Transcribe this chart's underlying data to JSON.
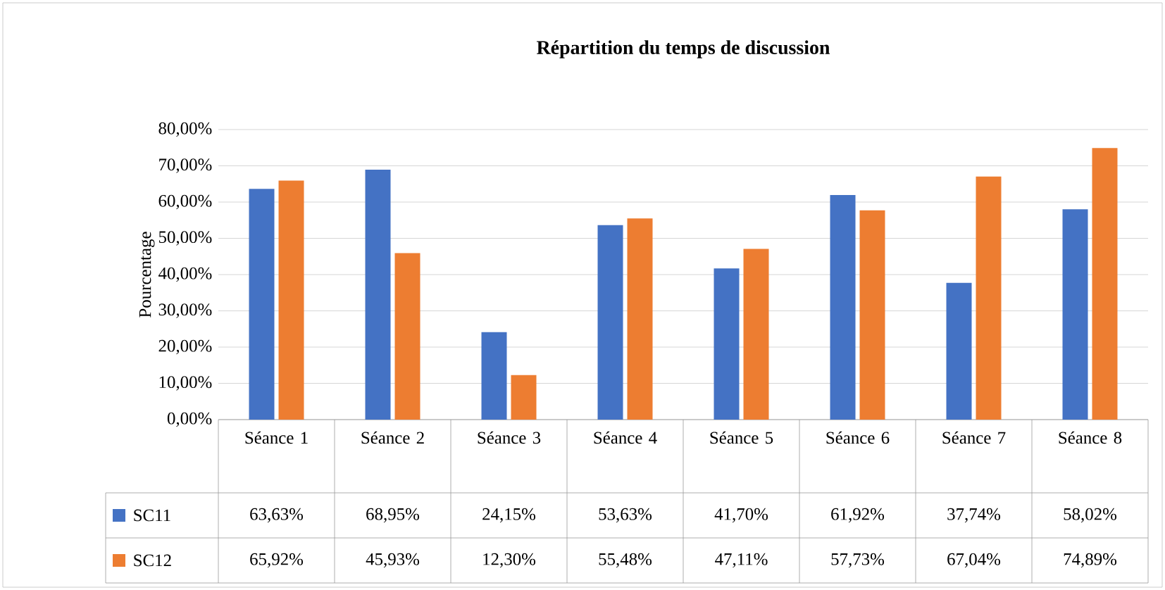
{
  "chart_data": {
    "type": "bar",
    "title": "Répartition du temps de discussion",
    "ylabel": "Pourcentage",
    "categories": [
      "Séance 1",
      "Séance 2",
      "Séance 3",
      "Séance 4",
      "Séance 5",
      "Séance 6",
      "Séance 7",
      "Séance 8"
    ],
    "series": [
      {
        "name": "SC11",
        "color": "#4472c4",
        "values": [
          63.63,
          68.95,
          24.15,
          53.63,
          41.7,
          61.92,
          37.74,
          58.02
        ],
        "value_labels": [
          "63,63%",
          "68,95%",
          "24,15%",
          "53,63%",
          "41,70%",
          "61,92%",
          "37,74%",
          "58,02%"
        ]
      },
      {
        "name": "SC12",
        "color": "#ed7d31",
        "values": [
          65.92,
          45.93,
          12.3,
          55.48,
          47.11,
          57.73,
          67.04,
          74.89
        ],
        "value_labels": [
          "65,92%",
          "45,93%",
          "12,30%",
          "55,48%",
          "47,11%",
          "57,73%",
          "67,04%",
          "74,89%"
        ]
      }
    ],
    "ylim": [
      0,
      80
    ],
    "yticks": [
      {
        "value": 0,
        "label": "0,00%"
      },
      {
        "value": 10,
        "label": "10,00%"
      },
      {
        "value": 20,
        "label": "20,00%"
      },
      {
        "value": 30,
        "label": "30,00%"
      },
      {
        "value": 40,
        "label": "40,00%"
      },
      {
        "value": 50,
        "label": "50,00%"
      },
      {
        "value": 60,
        "label": "60,00%"
      },
      {
        "value": 70,
        "label": "70,00%"
      },
      {
        "value": 80,
        "label": "80,00%"
      }
    ],
    "grid": "y",
    "legend": "bottom"
  }
}
